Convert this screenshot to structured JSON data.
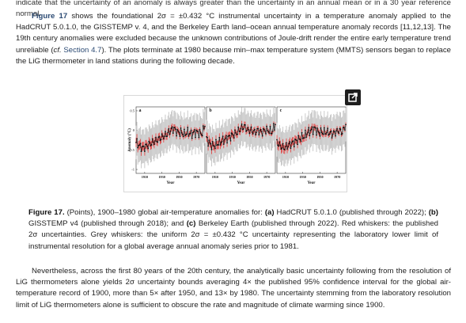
{
  "top_fragment": "indicate that the uncertainty of an anomaly is always greater than the uncertainty in an annual mean or in a 30 year reference normal.",
  "para1": {
    "fig_ref": "Figure 17",
    "text_a": " shows the foundational 2σ = ±0.432 °C instrumental uncertainty in a temperature anomaly applied to the HadCRUT 5.0.1.0, the GISSTEMP v. 4, and the Berkeley Earth land–ocean annual temperature anomaly records [11,12,13]. The 19th century anomalies were excluded because the unknown contributions of Joule-drift render the entire early temperature trend unreliable (",
    "cf": "cf.",
    "section_link": "Section 4.7",
    "text_b": "). The plots terminate at 1980 because min–max temperature system (MMTS) sensors began to replace the LiG thermometer in land stations during the following decade."
  },
  "figure": {
    "ylabel": "Anomaly (°C)",
    "yticks": [
      "0.5",
      "0",
      "-0.5",
      "-1"
    ],
    "panels": [
      {
        "letter": "a",
        "xlabel": "Year",
        "xticks": [
          "1910",
          "1930",
          "1950",
          "1970"
        ]
      },
      {
        "letter": "b",
        "xlabel": "Year",
        "xticks": [
          "1910",
          "1930",
          "1950",
          "1970"
        ]
      },
      {
        "letter": "c",
        "xlabel": "Year",
        "xticks": [
          "1910",
          "1930",
          "1950",
          "1970"
        ]
      }
    ],
    "colors": {
      "grey_whisker": "#c4c4c4",
      "red_whisker": "#e04848",
      "point": "#111111",
      "popout": "#1e1e1e"
    },
    "popout_icon": "external-link-icon"
  },
  "chart_data": [
    {
      "type": "scatter",
      "panel": "a",
      "xlabel": "Year",
      "ylabel": "Anomaly (°C)",
      "xlim": [
        1900,
        1980
      ],
      "ylim": [
        -1.1,
        0.6
      ],
      "error_uniform_2sigma": 0.432,
      "x": [
        1900,
        1904,
        1908,
        1912,
        1916,
        1920,
        1924,
        1928,
        1932,
        1936,
        1940,
        1944,
        1948,
        1952,
        1956,
        1960,
        1964,
        1968,
        1972,
        1976,
        1980
      ],
      "values": [
        -0.3,
        -0.4,
        -0.45,
        -0.4,
        -0.35,
        -0.3,
        -0.25,
        -0.2,
        -0.15,
        -0.1,
        0.0,
        0.05,
        -0.05,
        -0.05,
        -0.1,
        -0.05,
        -0.1,
        -0.05,
        -0.05,
        -0.1,
        0.1
      ]
    },
    {
      "type": "scatter",
      "panel": "b",
      "xlabel": "Year",
      "xlim": [
        1900,
        1980
      ],
      "ylim": [
        -1.1,
        0.6
      ],
      "error_uniform_2sigma": 0.432,
      "x": [
        1900,
        1904,
        1908,
        1912,
        1916,
        1920,
        1924,
        1928,
        1932,
        1936,
        1940,
        1944,
        1948,
        1952,
        1956,
        1960,
        1964,
        1968,
        1972,
        1976,
        1980
      ],
      "values": [
        -0.2,
        -0.35,
        -0.4,
        -0.35,
        -0.3,
        -0.25,
        -0.2,
        -0.15,
        -0.1,
        -0.05,
        0.05,
        0.1,
        0.0,
        0.0,
        -0.05,
        0.0,
        -0.05,
        0.0,
        0.0,
        -0.05,
        0.15
      ]
    },
    {
      "type": "scatter",
      "panel": "c",
      "xlabel": "Year",
      "xlim": [
        1900,
        1980
      ],
      "ylim": [
        -1.1,
        0.6
      ],
      "error_uniform_2sigma": 0.432,
      "x": [
        1900,
        1904,
        1908,
        1912,
        1916,
        1920,
        1924,
        1928,
        1932,
        1936,
        1940,
        1944,
        1948,
        1952,
        1956,
        1960,
        1964,
        1968,
        1972,
        1976,
        1980
      ],
      "values": [
        -0.3,
        -0.4,
        -0.45,
        -0.4,
        -0.35,
        -0.3,
        -0.25,
        -0.2,
        -0.15,
        -0.05,
        0.0,
        0.05,
        -0.05,
        -0.05,
        -0.05,
        -0.05,
        -0.1,
        -0.05,
        0.0,
        -0.05,
        0.15
      ]
    }
  ],
  "caption": {
    "label": "Figure 17.",
    "t1": " (Points), 1900–1980 global air-temperature anomalies for: ",
    "a_label": "(a)",
    "t2": " HadCRUT 5.0.1.0 (published through 2022); ",
    "b_label": "(b)",
    "t3": " GISSTEMP v4 (published through 2018); and ",
    "c_label": "(c)",
    "t4": " Berkeley Earth (published through 2022). Red whiskers: the published 2σ uncertainties. Grey whiskers: the uniform 2σ = ±0.432 °C uncertainty representing the laboratory lower limit of instrumental resolution for a global average annual anomaly series prior to 1981."
  },
  "para2": "Nevertheless, across the first 80 years of the 20th century, the analytically basic uncertainty following from the resolution of LiG thermometers alone yields 2σ uncertainty bounds averaging 4× the published 95% confidence interval for the global air-temperature record of 1900, more than 5× after 1950, and 13× by 1980. The uncertainty stemming from the laboratory resolution limit of LiG thermometers alone is sufficient to obscure the rate and magnitude of climate warming since 1900."
}
